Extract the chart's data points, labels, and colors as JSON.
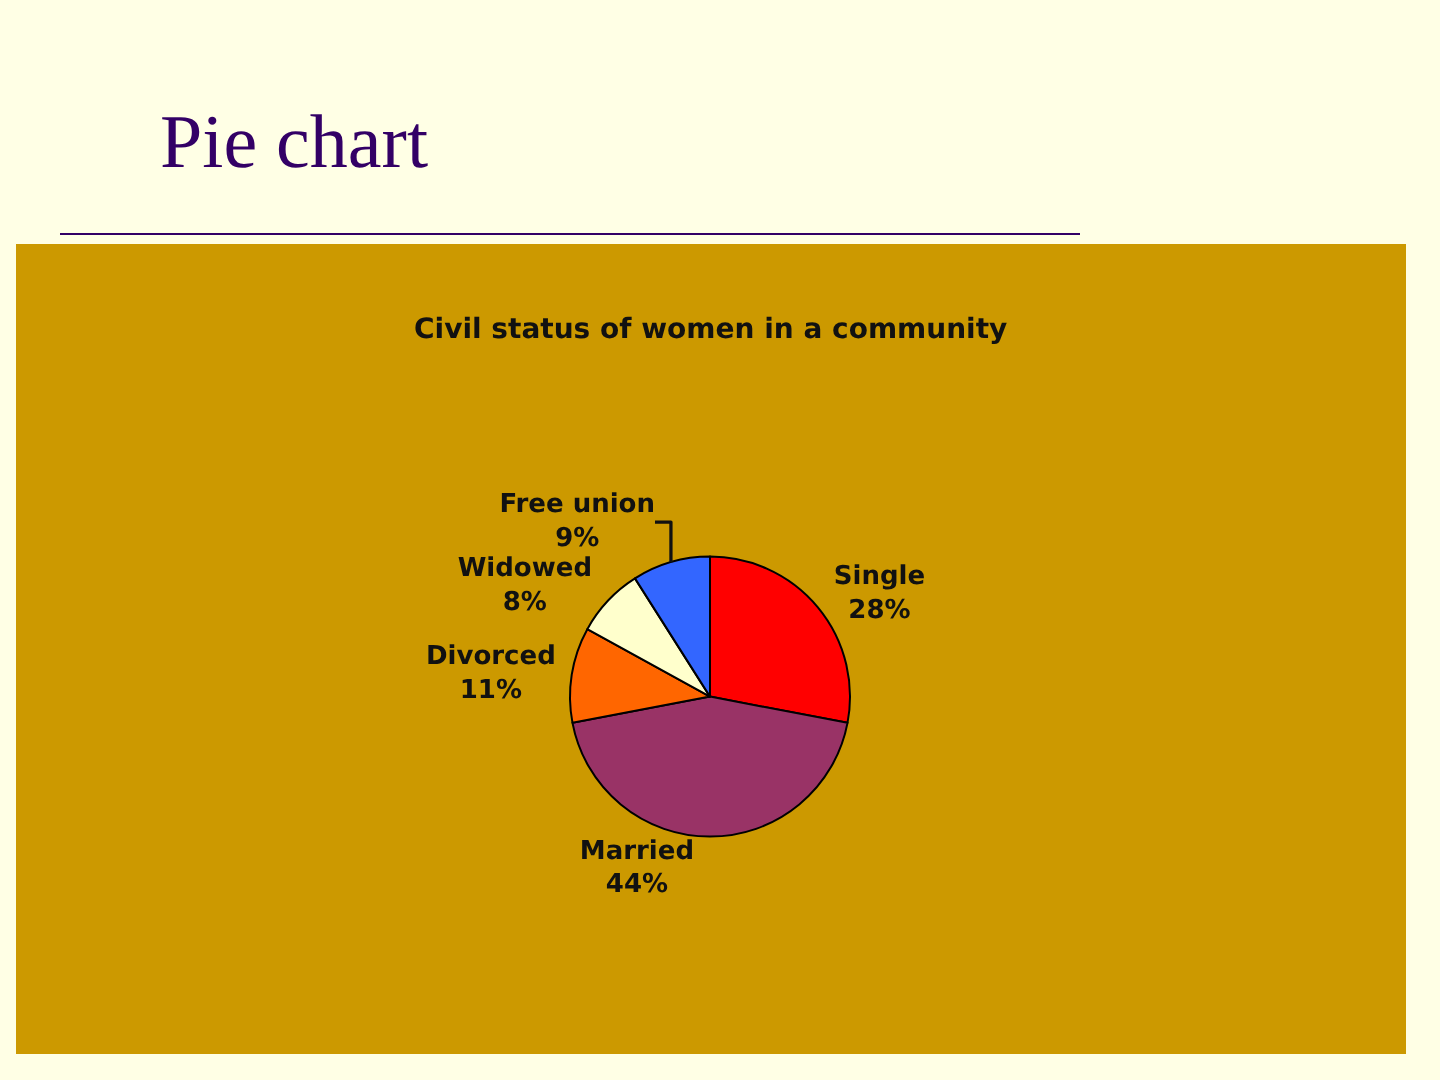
{
  "chart_data": {
    "type": "pie",
    "title": "Pie chart",
    "subtitle": "Civil status of women in a community",
    "categories": [
      "Single",
      "Married",
      "Divorced",
      "Widowed",
      "Free union"
    ],
    "values": [
      28,
      44,
      11,
      8,
      9
    ],
    "value_labels": [
      "28%",
      "44%",
      "11%",
      "8%",
      "9%"
    ],
    "colors": [
      "#ff0000",
      "#993366",
      "#ff6600",
      "#ffffcc",
      "#3366ff"
    ],
    "legend": false
  }
}
